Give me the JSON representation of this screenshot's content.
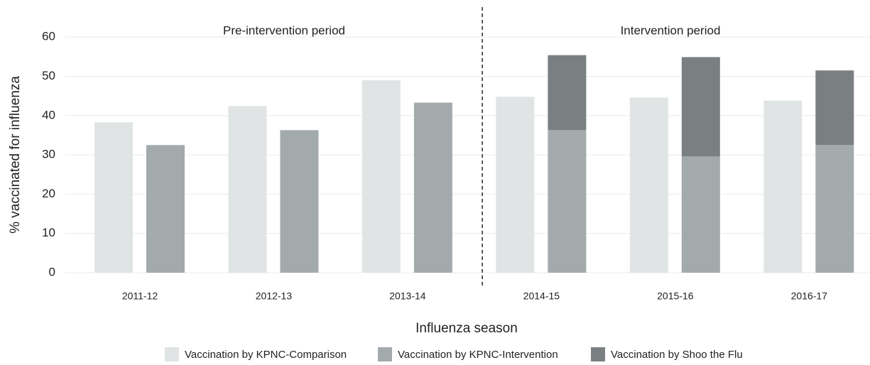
{
  "chart_data": {
    "type": "bar",
    "ylabel": "% vaccinated for influenza",
    "xlabel": "Influenza season",
    "annotations": [
      "Pre-intervention period",
      "Intervention period"
    ],
    "categories": [
      "2011-12",
      "2012-13",
      "2013-14",
      "2014-15",
      "2015-16",
      "2016-17"
    ],
    "series": [
      {
        "name": "Vaccination by KPNC-Comparison",
        "color": "#e1e4e5",
        "values": [
          38.3,
          42.4,
          49.0,
          44.8,
          44.6,
          43.8
        ]
      },
      {
        "name": "Vaccination by KPNC-Intervention",
        "color": "#a2aaab",
        "values": [
          32.5,
          36.3,
          43.3,
          36.3,
          29.6,
          32.5
        ]
      },
      {
        "name": "Vaccination by Shoo the Flu",
        "color": "#7a8081",
        "values": [
          null,
          null,
          null,
          19.1,
          25.3,
          19.0
        ]
      }
    ],
    "ylim": [
      0,
      65
    ],
    "yticks": [
      0,
      10,
      20,
      30,
      40,
      50,
      60
    ],
    "grid": true
  }
}
